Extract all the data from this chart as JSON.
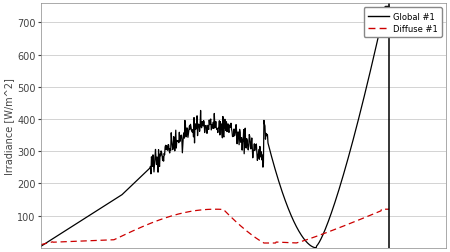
{
  "ylabel": "Irradiance [W/m^2]",
  "ylim": [
    0,
    760
  ],
  "xlim": [
    0,
    100
  ],
  "yticks": [
    100,
    200,
    300,
    400,
    500,
    600,
    700
  ],
  "legend_labels": [
    "Global #1",
    "Diffuse #1"
  ],
  "background_color": "#ffffff",
  "grid_color": "#cccccc",
  "vline_x": 86,
  "noise_seed": 17
}
